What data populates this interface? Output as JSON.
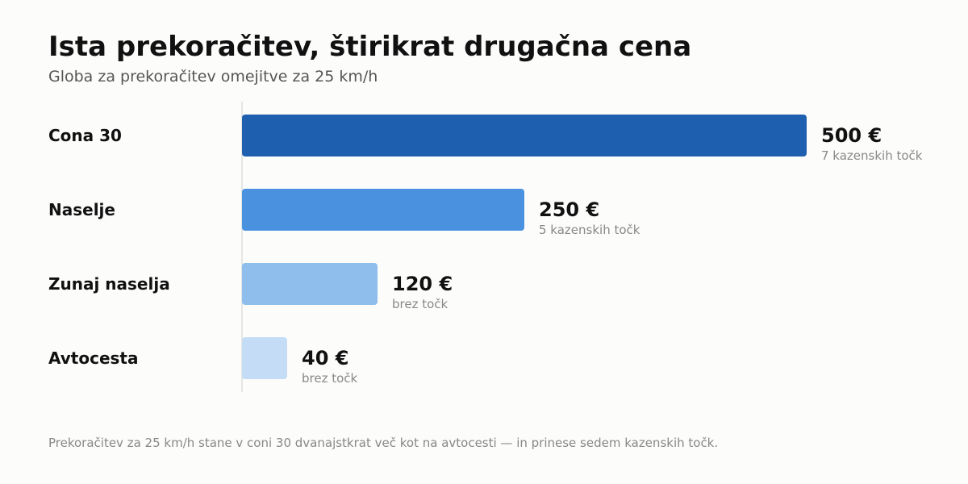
{
  "header": {
    "title": "Ista prekoračitev, štirikrat drugačna cena",
    "subtitle": "Globa za prekoračitev omejitve za 25 km/h"
  },
  "footnote": "Prekoračitev za 25 km/h stane v coni 30 dvanajstkrat več kot na avtocesti — in prinese sedem kazenskih točk.",
  "chart_data": {
    "type": "bar",
    "orientation": "horizontal",
    "title": "Ista prekoračitev, štirikrat drugačna cena",
    "subtitle": "Globa za prekoračitev omejitve za 25 km/h",
    "categories": [
      "Cona 30",
      "Naselje",
      "Zunaj naselja",
      "Avtocesta"
    ],
    "values": [
      500,
      250,
      120,
      40
    ],
    "value_labels": [
      "500 €",
      "250 €",
      "120 €",
      "40 €"
    ],
    "notes": [
      "7 kazenskih točk",
      "5 kazenskih točk",
      "brez točk",
      "brez točk"
    ],
    "colors": [
      "#1f5faf",
      "#4a92df",
      "#8fbdec",
      "#c4dcf6"
    ],
    "xlim": [
      0,
      500
    ],
    "grid": false,
    "legend": "none"
  }
}
